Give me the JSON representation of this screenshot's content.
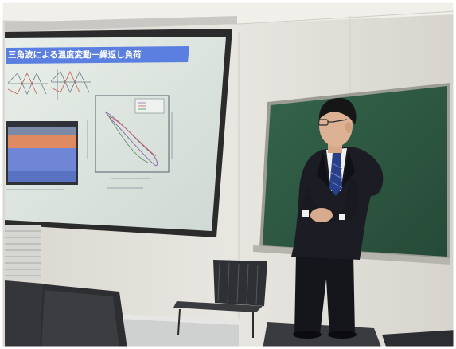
{
  "slide": {
    "title": "三角波による温度変動－繰返し負荷"
  },
  "colors": {
    "wall": "#e4e2dc",
    "ceiling": "#f0efea",
    "screen": "#dfe6e2",
    "slide_title_bar": "#5a7fe0",
    "chalkboard": "#2f5a43",
    "suit": "#1c1d24",
    "tie": "#2a3f8a"
  }
}
